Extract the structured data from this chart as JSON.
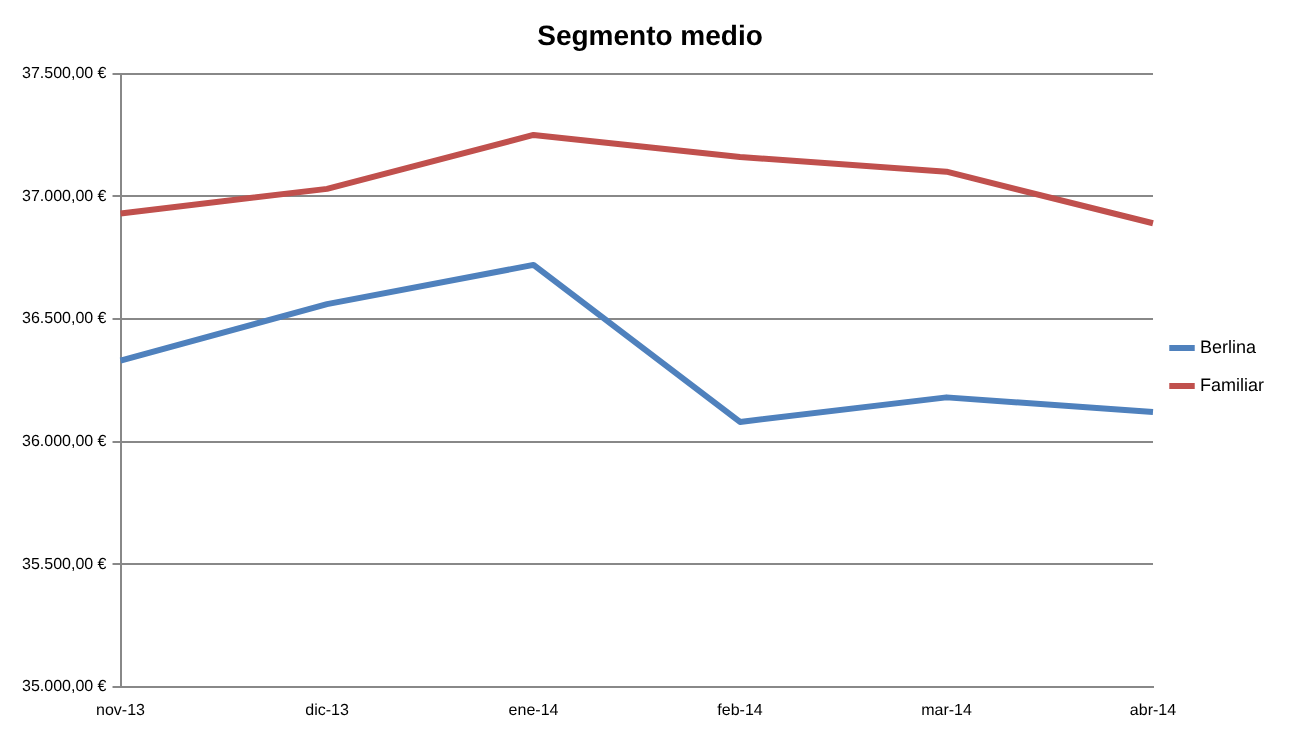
{
  "chart_data": {
    "type": "line",
    "title": "Segmento medio",
    "categories": [
      "nov-13",
      "dic-13",
      "ene-14",
      "feb-14",
      "mar-14",
      "abr-14"
    ],
    "series": [
      {
        "name": "Berlina",
        "color": "#4f81bd",
        "values": [
          36330,
          36560,
          36720,
          36080,
          36180,
          36120
        ]
      },
      {
        "name": "Familiar",
        "color": "#c0504d",
        "values": [
          36930,
          37030,
          37250,
          37160,
          37100,
          36890
        ]
      }
    ],
    "ylim": [
      35000,
      37500
    ],
    "yticks": [
      {
        "value": 35000,
        "label": "35.000,00 €"
      },
      {
        "value": 35500,
        "label": "35.500,00 €"
      },
      {
        "value": 36000,
        "label": "36.000,00 €"
      },
      {
        "value": 36500,
        "label": "36.500,00 €"
      },
      {
        "value": 37000,
        "label": "37.000,00 €"
      },
      {
        "value": 37500,
        "label": "37.500,00 €"
      }
    ],
    "grid": "y",
    "legend": "right",
    "marker": "none",
    "line_style": "solid"
  }
}
